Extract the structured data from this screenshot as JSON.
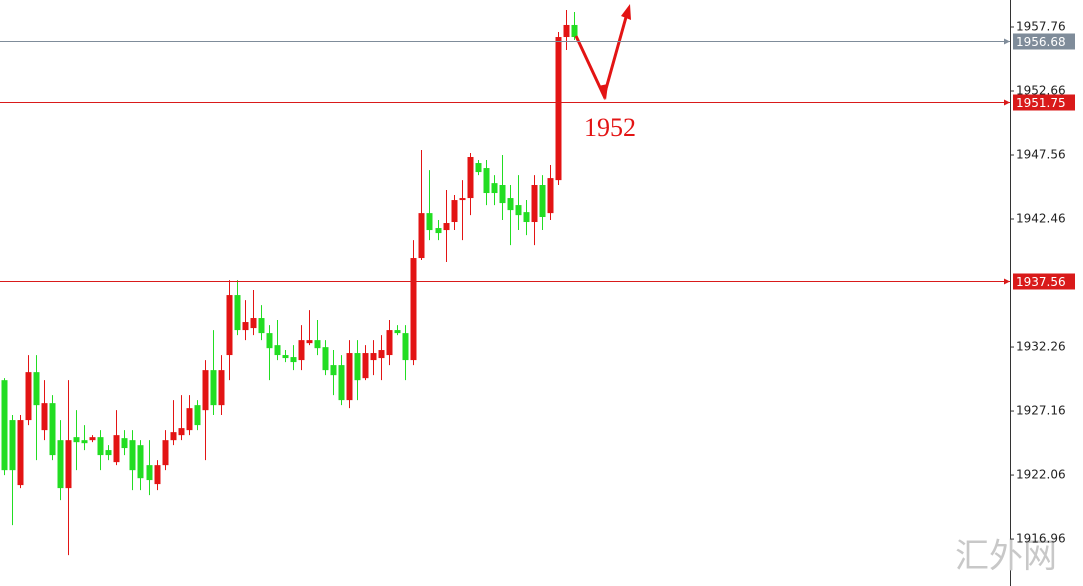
{
  "chart_data": {
    "type": "candlestick",
    "up_color": "#e31414",
    "down_color": "#22dd22",
    "ylim": [
      1913.22,
      1959.91
    ],
    "yticks": [
      1957.76,
      1952.66,
      1947.56,
      1942.46,
      1932.26,
      1927.16,
      1922.06,
      1916.96
    ],
    "open": [
      1929.62,
      1926.44,
      1921.26,
      1926.44,
      1930.26,
      1925.64,
      1927.79,
      1924.84,
      1921.02,
      1925.08,
      1924.84,
      1924.84,
      1925.08,
      1924.05,
      1923.09,
      1925.0,
      1924.84,
      1924.44,
      1922.85,
      1921.34,
      1922.85,
      1924.84,
      1925.24,
      1925.64,
      1927.63,
      1927.23,
      1930.42,
      1927.63,
      1931.62,
      1936.4,
      1933.61,
      1933.77,
      1934.57,
      1933.37,
      1932.41,
      1931.62,
      1931.46,
      1931.22,
      1932.57,
      1932.81,
      1932.25,
      1930.82,
      1930.82,
      1928.03,
      1931.78,
      1929.78,
      1931.22,
      1931.38,
      1931.62,
      1933.61,
      1933.37,
      1931.22,
      1939.35,
      1942.93,
      1941.74,
      1941.58,
      1942.22,
      1943.97,
      1944.13,
      1946.92,
      1946.52,
      1945.32,
      1945.17,
      1944.13,
      1943.57,
      1943.01,
      1942.22,
      1945.17,
      1942.93,
      1945.56,
      1956.96,
      1957.92
    ],
    "high": [
      1929.78,
      1926.84,
      1926.84,
      1931.62,
      1931.62,
      1929.62,
      1928.43,
      1926.44,
      1929.62,
      1927.23,
      1926.04,
      1925.24,
      1925.64,
      1924.44,
      1927.23,
      1925.64,
      1925.64,
      1924.84,
      1924.84,
      1923.25,
      1925.64,
      1928.03,
      1928.43,
      1928.43,
      1928.03,
      1931.22,
      1933.61,
      1931.62,
      1937.59,
      1937.59,
      1936.0,
      1936.8,
      1935.6,
      1934.01,
      1934.41,
      1932.02,
      1932.41,
      1934.01,
      1935.2,
      1934.41,
      1932.81,
      1932.02,
      1931.62,
      1932.81,
      1932.81,
      1932.41,
      1932.81,
      1933.21,
      1934.41,
      1934.01,
      1934.01,
      1940.78,
      1947.96,
      1946.36,
      1942.38,
      1944.77,
      1944.37,
      1945.56,
      1947.72,
      1947.16,
      1947.16,
      1945.96,
      1947.56,
      1945.17,
      1945.96,
      1943.97,
      1945.96,
      1945.96,
      1946.76,
      1957.36,
      1959.11,
      1958.95
    ],
    "low": [
      1922.05,
      1918.07,
      1921.02,
      1926.04,
      1923.25,
      1924.84,
      1923.25,
      1920.06,
      1915.68,
      1922.45,
      1924.05,
      1924.68,
      1922.45,
      1923.25,
      1922.85,
      1923.65,
      1920.86,
      1920.86,
      1920.46,
      1920.86,
      1922.45,
      1924.44,
      1924.84,
      1925.24,
      1925.64,
      1923.25,
      1926.84,
      1926.84,
      1929.62,
      1933.21,
      1932.81,
      1933.21,
      1932.81,
      1929.62,
      1931.22,
      1931.06,
      1930.42,
      1930.42,
      1932.41,
      1931.62,
      1930.02,
      1928.43,
      1927.63,
      1927.39,
      1928.03,
      1929.62,
      1930.02,
      1929.62,
      1930.82,
      1933.21,
      1929.62,
      1930.82,
      1939.19,
      1940.78,
      1940.78,
      1939.03,
      1941.58,
      1940.78,
      1942.77,
      1945.96,
      1943.57,
      1943.57,
      1942.38,
      1940.38,
      1941.58,
      1941.18,
      1940.38,
      1941.58,
      1942.38,
      1945.17,
      1955.93,
      1956.72
    ],
    "close": [
      1922.45,
      1922.45,
      1926.44,
      1930.26,
      1927.63,
      1927.79,
      1923.65,
      1921.02,
      1924.84,
      1924.68,
      1924.6,
      1925.08,
      1923.65,
      1923.65,
      1925.24,
      1924.21,
      1922.45,
      1921.81,
      1921.66,
      1922.85,
      1924.84,
      1925.48,
      1925.8,
      1927.39,
      1926.04,
      1930.42,
      1927.63,
      1930.42,
      1936.4,
      1933.61,
      1934.25,
      1934.57,
      1933.37,
      1932.17,
      1931.62,
      1931.38,
      1931.06,
      1932.81,
      1932.81,
      1932.17,
      1930.42,
      1930.02,
      1928.03,
      1931.78,
      1929.62,
      1931.78,
      1931.78,
      1932.02,
      1933.61,
      1933.37,
      1931.22,
      1939.35,
      1942.93,
      1941.58,
      1941.34,
      1942.14,
      1943.97,
      1944.13,
      1947.4,
      1946.2,
      1944.53,
      1944.53,
      1943.73,
      1943.17,
      1942.77,
      1942.22,
      1945.17,
      1942.62,
      1945.72,
      1956.96,
      1957.92,
      1956.96
    ],
    "levels": [
      {
        "value": 1956.68,
        "color": "#7f8c9a"
      },
      {
        "value": 1951.75,
        "color": "#d91a1a"
      },
      {
        "value": 1937.56,
        "color": "#d91a1a"
      }
    ],
    "annotation": "1952",
    "watermark": "汇外网"
  }
}
